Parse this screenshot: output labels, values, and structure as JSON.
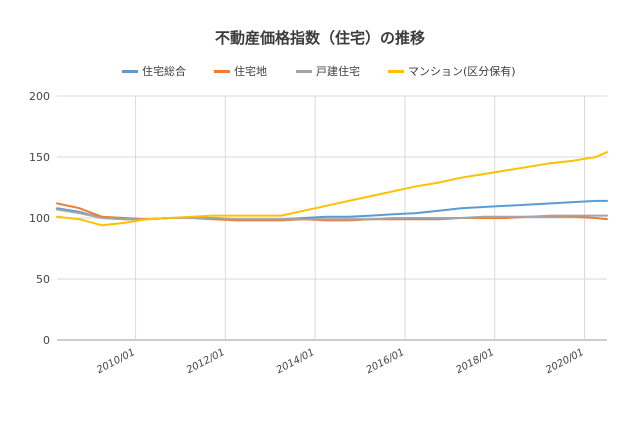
{
  "chart_data": {
    "type": "line",
    "title": "不動産価格指数（住宅）の推移",
    "xlabel": "",
    "ylabel": "",
    "ylim": [
      0,
      200
    ],
    "yticks": [
      0,
      50,
      100,
      150,
      200
    ],
    "xlim": [
      "2008/04",
      "2020/07"
    ],
    "xticks": [
      "2010/01",
      "2012/01",
      "2014/01",
      "2016/01",
      "2018/01",
      "2020/01"
    ],
    "grid": true,
    "legend_position": "top",
    "x": [
      "2008/04",
      "2008/10",
      "2009/04",
      "2009/10",
      "2010/04",
      "2010/10",
      "2011/04",
      "2011/10",
      "2012/04",
      "2012/10",
      "2013/04",
      "2013/10",
      "2014/04",
      "2014/10",
      "2015/04",
      "2015/10",
      "2016/04",
      "2016/10",
      "2017/04",
      "2017/10",
      "2018/04",
      "2018/10",
      "2019/04",
      "2019/10",
      "2020/04",
      "2020/07"
    ],
    "series": [
      {
        "name": "住宅総合",
        "color": "#5b9bd5",
        "values": [
          108,
          105,
          100,
          99,
          99,
          100,
          100,
          100,
          99,
          99,
          99,
          100,
          101,
          101,
          102,
          103,
          104,
          106,
          108,
          109,
          110,
          111,
          112,
          113,
          114,
          114
        ]
      },
      {
        "name": "住宅地",
        "color": "#ed7d31",
        "values": [
          112,
          108,
          101,
          100,
          99,
          100,
          100,
          99,
          98,
          98,
          98,
          99,
          98,
          98,
          99,
          99,
          99,
          99,
          100,
          100,
          100,
          101,
          101,
          101,
          100,
          99
        ]
      },
      {
        "name": "戸建住宅",
        "color": "#a5a5a5",
        "values": [
          107,
          104,
          100,
          99,
          99,
          100,
          100,
          100,
          99,
          99,
          99,
          99,
          99,
          99,
          99,
          100,
          100,
          100,
          100,
          101,
          101,
          101,
          102,
          102,
          102,
          102
        ]
      },
      {
        "name": "マンション(区分保有)",
        "color": "#ffc000",
        "values": [
          101,
          99,
          94,
          96,
          99,
          100,
          101,
          102,
          102,
          102,
          102,
          106,
          110,
          114,
          118,
          122,
          126,
          129,
          133,
          136,
          139,
          142,
          145,
          147,
          150,
          154
        ]
      }
    ]
  }
}
